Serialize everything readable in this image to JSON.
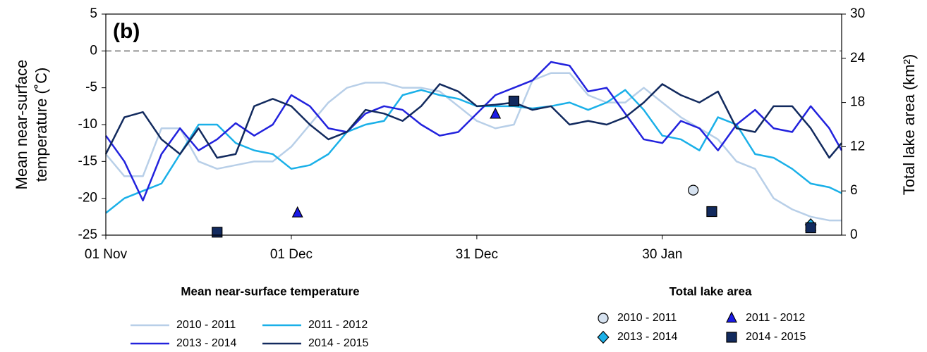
{
  "chart_data": {
    "type": "line",
    "annotation": "(b)",
    "ylabel": [
      "Mean near-surface",
      "temperature (˚C)"
    ],
    "y2label": "Total lake area (km²)",
    "xlim": [
      0,
      119
    ],
    "xticks": [
      {
        "value": 0,
        "label": "01 Nov"
      },
      {
        "value": 30,
        "label": "01 Dec"
      },
      {
        "value": 60,
        "label": "31 Dec"
      },
      {
        "value": 90,
        "label": "30 Jan"
      }
    ],
    "ylim": [
      -25,
      5
    ],
    "yticks": [
      -25,
      -20,
      -15,
      -10,
      -5,
      0,
      5
    ],
    "y2lim": [
      0,
      30
    ],
    "y2ticks": [
      0,
      6,
      12,
      18,
      24,
      30
    ],
    "reference_line": 0,
    "legend_title": "Mean near-surface temperature",
    "marker_legend_title": "Total lake area",
    "x": [
      0,
      3,
      6,
      9,
      12,
      15,
      18,
      21,
      24,
      27,
      30,
      33,
      36,
      39,
      42,
      45,
      48,
      51,
      54,
      57,
      60,
      63,
      66,
      69,
      72,
      75,
      78,
      81,
      84,
      87,
      90,
      93,
      96,
      99,
      102,
      105,
      108,
      111,
      114,
      117,
      119
    ],
    "series": [
      {
        "name": "2010 - 2011",
        "color": "#b8cfe8",
        "values": [
          -14,
          -17,
          -17,
          -10.5,
          -10.5,
          -15,
          -16,
          -15.5,
          -15,
          -15,
          -13,
          -10,
          -7,
          -5,
          -4.3,
          -4.3,
          -5,
          -5,
          -5.5,
          -7.5,
          -9.5,
          -10.5,
          -10,
          -4,
          -3,
          -3,
          -6,
          -7,
          -7,
          -5,
          -7,
          -9,
          -10.5,
          -12,
          -15,
          -16,
          -20,
          -21.5,
          -22.5,
          -23,
          -23
        ]
      },
      {
        "name": "2011 - 2012",
        "color": "#1ab0e8",
        "values": [
          -22,
          -20,
          -19,
          -18,
          -14,
          -10,
          -10,
          -12.5,
          -13.5,
          -14,
          -16,
          -15.5,
          -14,
          -11,
          -10,
          -9.5,
          -6,
          -5.3,
          -6,
          -6.5,
          -7.5,
          -7.5,
          -7.5,
          -7.8,
          -7.5,
          -7,
          -8,
          -7,
          -5.3,
          -8,
          -11.5,
          -12,
          -13.5,
          -9,
          -10,
          -14,
          -14.5,
          -16,
          -18,
          -18.5,
          -19.3
        ]
      },
      {
        "name": "2013 - 2014",
        "color": "#2222dd",
        "values": [
          -11.5,
          -15,
          -20.3,
          -14,
          -10.5,
          -13.5,
          -12,
          -9.8,
          -11.5,
          -10,
          -6,
          -7.5,
          -10.5,
          -11,
          -8.5,
          -7.5,
          -8,
          -10,
          -11.5,
          -11,
          -8.5,
          -6,
          -5,
          -4,
          -1.5,
          -2,
          -5.5,
          -5,
          -8.5,
          -12,
          -12.5,
          -9.5,
          -10.5,
          -13.5,
          -10,
          -8,
          -10.5,
          -11,
          -7.5,
          -10.5,
          -13.5
        ]
      },
      {
        "name": "2014 - 2015",
        "color": "#122a5e",
        "values": [
          -14,
          -9,
          -8.3,
          -12,
          -14,
          -10.5,
          -14.5,
          -14,
          -7.5,
          -6.5,
          -7.5,
          -10,
          -12,
          -11,
          -8,
          -8.5,
          -9.5,
          -7.5,
          -4.5,
          -5.5,
          -7.5,
          -7.3,
          -7,
          -8,
          -7.5,
          -10,
          -9.5,
          -10,
          -9,
          -7,
          -4.5,
          -6,
          -7,
          -5.5,
          -10.5,
          -11,
          -7.5,
          -7.5,
          -10.5,
          -14.5,
          -12.5
        ]
      }
    ],
    "markers": [
      {
        "name": "2010 - 2011",
        "marker": "circle",
        "color": "#d6e2f0",
        "axis": "y2",
        "x": [
          95
        ],
        "values": [
          6.1
        ]
      },
      {
        "name": "2011 - 2012",
        "marker": "triangle",
        "color": "#1a1ae6",
        "axis": "y2",
        "x": [
          31,
          63,
          114
        ],
        "values": [
          3.0,
          16.4,
          1.2
        ]
      },
      {
        "name": "2013 - 2014",
        "marker": "diamond",
        "color": "#1ab0e8",
        "axis": "y2",
        "x": [
          114
        ],
        "values": [
          1.4
        ]
      },
      {
        "name": "2014 - 2015",
        "marker": "square",
        "color": "#122a5e",
        "axis": "y2",
        "x": [
          18,
          66,
          98,
          114
        ],
        "values": [
          0.4,
          18.2,
          3.2,
          1.0
        ]
      }
    ]
  }
}
